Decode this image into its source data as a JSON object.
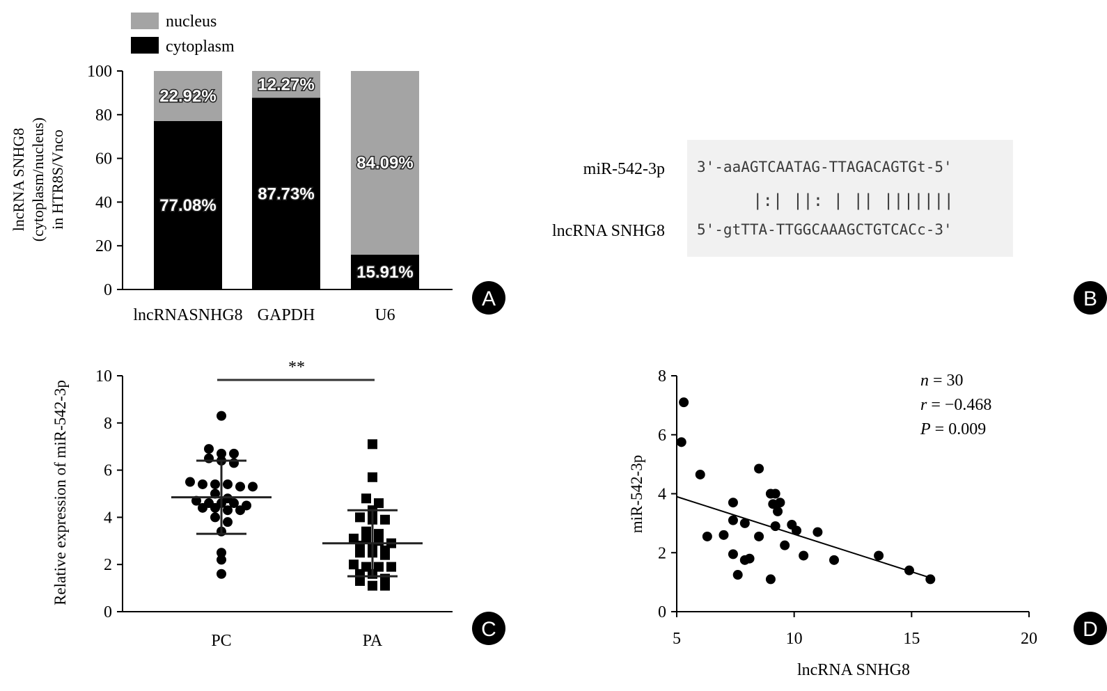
{
  "colors": {
    "nucleus": "#a4a4a4",
    "cytoplasm": "#000000",
    "seq_bg": "#f1f1f1",
    "seq_text": "#3a3a3a"
  },
  "chart_data": [
    {
      "panel": "A",
      "type": "bar",
      "stacked": true,
      "categories": [
        "lncRNASNHG8",
        "GAPDH",
        "U6"
      ],
      "series": [
        {
          "name": "cytoplasm",
          "values": [
            77.08,
            87.73,
            15.91
          ],
          "labels": [
            "77.08%",
            "87.73%",
            "15.91%"
          ]
        },
        {
          "name": "nucleus",
          "values": [
            22.92,
            12.27,
            84.09
          ],
          "labels": [
            "22.92%",
            "12.27%",
            "84.09%"
          ]
        }
      ],
      "legend": [
        "nucleus",
        "cytoplasm"
      ],
      "legend_position": "top-left",
      "ylabel_lines": [
        "lncRNA SNHG8",
        "(cytoplasm/nucleus)",
        "in HTR8S/Vnco"
      ],
      "ylim": [
        0,
        100
      ],
      "yticks": [
        "0",
        "20",
        "40",
        "60",
        "80",
        "100"
      ]
    },
    {
      "panel": "C",
      "type": "scatter",
      "categories": [
        "PC",
        "PA"
      ],
      "groups": [
        {
          "name": "PC",
          "marker": "circle",
          "values": [
            8.3,
            6.9,
            6.7,
            6.7,
            6.5,
            6.4,
            6.3,
            5.5,
            5.4,
            5.4,
            5.4,
            5.3,
            5.3,
            5.0,
            4.8,
            4.7,
            4.6,
            4.6,
            4.6,
            4.5,
            4.4,
            4.4,
            4.3,
            4.3,
            4.0,
            3.8,
            3.4,
            2.5,
            2.2,
            1.6
          ],
          "mean": 4.85,
          "sd_upper": 6.4,
          "sd_lower": 3.3
        },
        {
          "name": "PA",
          "marker": "square",
          "values": [
            7.1,
            5.7,
            4.8,
            4.6,
            4.3,
            4.0,
            3.9,
            3.9,
            3.4,
            3.3,
            3.1,
            3.1,
            3.0,
            2.9,
            2.8,
            2.7,
            2.6,
            2.5,
            2.5,
            2.4,
            2.0,
            1.9,
            1.9,
            1.9,
            1.6,
            1.6,
            1.4,
            1.3,
            1.1,
            1.1
          ],
          "mean": 2.9,
          "sd_upper": 4.3,
          "sd_lower": 1.5
        }
      ],
      "significance": "**",
      "ylabel": "Relative expression of miR-542-3p",
      "ylim": [
        0,
        10
      ],
      "yticks": [
        "0",
        "2",
        "4",
        "6",
        "8",
        "10"
      ]
    },
    {
      "panel": "D",
      "type": "scatter",
      "points": [
        {
          "x": 5.3,
          "y": 7.1
        },
        {
          "x": 5.2,
          "y": 5.75
        },
        {
          "x": 6.0,
          "y": 4.65
        },
        {
          "x": 8.5,
          "y": 4.85
        },
        {
          "x": 9.0,
          "y": 4.0
        },
        {
          "x": 9.2,
          "y": 4.0
        },
        {
          "x": 9.1,
          "y": 3.65
        },
        {
          "x": 9.4,
          "y": 3.7
        },
        {
          "x": 9.3,
          "y": 3.4
        },
        {
          "x": 7.4,
          "y": 3.7
        },
        {
          "x": 7.4,
          "y": 3.1
        },
        {
          "x": 7.9,
          "y": 3.0
        },
        {
          "x": 9.2,
          "y": 2.9
        },
        {
          "x": 9.9,
          "y": 2.95
        },
        {
          "x": 10.1,
          "y": 2.75
        },
        {
          "x": 11.0,
          "y": 2.7
        },
        {
          "x": 6.3,
          "y": 2.55
        },
        {
          "x": 7.0,
          "y": 2.6
        },
        {
          "x": 8.5,
          "y": 2.55
        },
        {
          "x": 7.4,
          "y": 1.95
        },
        {
          "x": 7.9,
          "y": 1.75
        },
        {
          "x": 8.1,
          "y": 1.8
        },
        {
          "x": 10.4,
          "y": 1.9
        },
        {
          "x": 11.7,
          "y": 1.75
        },
        {
          "x": 13.6,
          "y": 1.9
        },
        {
          "x": 7.6,
          "y": 1.25
        },
        {
          "x": 9.0,
          "y": 1.1
        },
        {
          "x": 14.9,
          "y": 1.4
        },
        {
          "x": 15.8,
          "y": 1.1
        },
        {
          "x": 9.6,
          "y": 2.25
        }
      ],
      "fit_line": {
        "x": [
          5.0,
          15.8
        ],
        "y": [
          3.9,
          1.15
        ]
      },
      "xlabel": "lncRNA SNHG8",
      "ylabel": "miR-542-3p",
      "xlim": [
        5,
        20
      ],
      "ylim": [
        0,
        8
      ],
      "xticks": [
        "5",
        "10",
        "15",
        "20"
      ],
      "yticks": [
        "0",
        "2",
        "4",
        "6",
        "8"
      ],
      "stats": {
        "n_label": "n",
        "n_value": " = 30",
        "r_label": "r",
        "r_value": " = −0.468",
        "p_label": "P",
        "p_value": " = 0.009"
      }
    }
  ],
  "panel_b": {
    "mirna_label": "miR-542-3p",
    "lncrna_label": "lncRNA SNHG8",
    "mirna_seq": "3'-aaAGTCAATAG-TTAGACAGTGt-5'",
    "pairing": "|:| ||: | || |||||||",
    "lncrna_seq": "5'-gtTTA-TTGGCAAAGCTGTCACc-3'"
  },
  "panel_labels": {
    "a": "A",
    "b": "B",
    "c": "C",
    "d": "D"
  }
}
